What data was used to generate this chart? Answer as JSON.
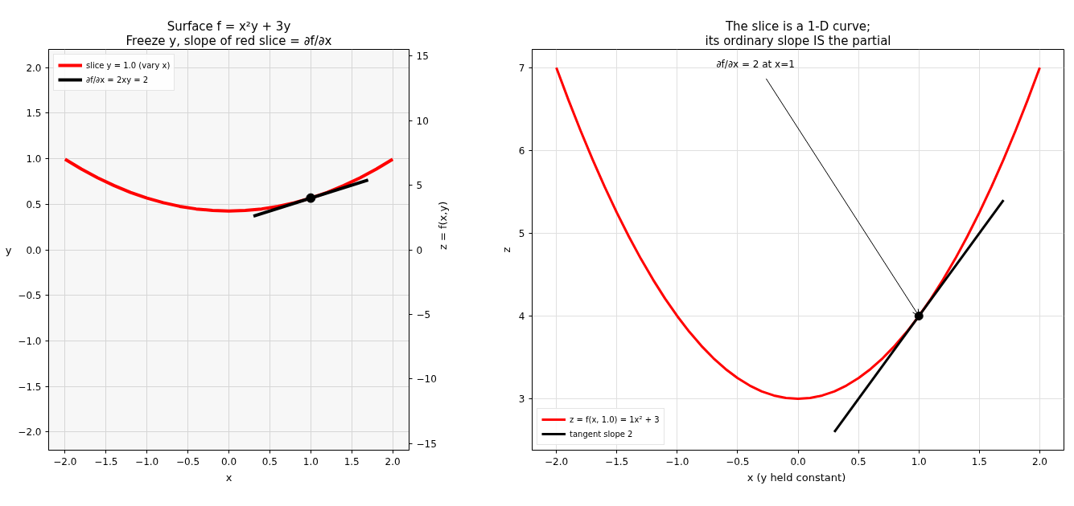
{
  "chart_data": [
    {
      "type": "line",
      "title": "Surface f = x²y + 3y\nFreeze y, slope of red slice = ∂f/∂x",
      "xlabel": "x",
      "ylabel": "y",
      "y2label": "z = f(x,y)",
      "xlim": [
        -2.2,
        2.2
      ],
      "xticks": [
        {
          "value": -2,
          "label": "−2.0"
        },
        {
          "value": -1.5,
          "label": "−1.5"
        },
        {
          "value": -1,
          "label": "−1.0"
        },
        {
          "value": -0.5,
          "label": "−0.5"
        },
        {
          "value": 0,
          "label": "0.0"
        },
        {
          "value": 0.5,
          "label": "0.5"
        },
        {
          "value": 1,
          "label": "1.0"
        },
        {
          "value": 1.5,
          "label": "1.5"
        },
        {
          "value": 2,
          "label": "2.0"
        }
      ],
      "ylim": [
        -2.2,
        2.2
      ],
      "yticks": [
        {
          "value": -2,
          "label": "−2.0"
        },
        {
          "value": -1.5,
          "label": "−1.5"
        },
        {
          "value": -1,
          "label": "−1.0"
        },
        {
          "value": -0.5,
          "label": "−0.5"
        },
        {
          "value": 0,
          "label": "0.0"
        },
        {
          "value": 0.5,
          "label": "0.5"
        },
        {
          "value": 1,
          "label": "1.0"
        },
        {
          "value": 1.5,
          "label": "1.5"
        },
        {
          "value": 2,
          "label": "2.0"
        }
      ],
      "y2lim": [
        -15.5,
        15.5
      ],
      "y2ticks": [
        {
          "value": -15,
          "label": "−15"
        },
        {
          "value": -10,
          "label": "−10"
        },
        {
          "value": -5,
          "label": "−5"
        },
        {
          "value": 0,
          "label": "0"
        },
        {
          "value": 5,
          "label": "5"
        },
        {
          "value": 10,
          "label": "10"
        },
        {
          "value": 15,
          "label": "15"
        }
      ],
      "grid": true,
      "legend": "top left",
      "series": [
        {
          "name": "slice y = 1.0 (vary x)",
          "type": "line",
          "color": "#ff0000",
          "axis": "y2",
          "x": [
            -2,
            -1.8,
            -1.6,
            -1.4,
            -1.2,
            -1,
            -0.8,
            -0.6,
            -0.4,
            -0.2,
            0,
            0.2,
            0.4,
            0.6,
            0.8,
            1,
            1.2,
            1.4,
            1.6,
            1.8,
            2
          ],
          "values": [
            7,
            6.24,
            5.56,
            4.96,
            4.44,
            4,
            3.64,
            3.36,
            3.16,
            3.04,
            3,
            3.04,
            3.16,
            3.36,
            3.64,
            4,
            4.44,
            4.96,
            5.56,
            6.24,
            7
          ]
        },
        {
          "name": "∂f/∂x = 2xy = 2",
          "type": "line",
          "color": "#000000",
          "axis": "y2",
          "x": [
            0.3,
            1.7
          ],
          "values": [
            2.6,
            5.4
          ]
        },
        {
          "type": "scatter",
          "color": "#000000",
          "axis": "y2",
          "x": [
            1
          ],
          "values": [
            4
          ]
        }
      ]
    },
    {
      "type": "line",
      "title": "The slice is a 1-D curve;\nits ordinary slope IS the partial",
      "xlabel": "x  (y held constant)",
      "ylabel": "z",
      "xlim": [
        -2.2,
        2.2
      ],
      "xticks": [
        {
          "value": -2,
          "label": "−2.0"
        },
        {
          "value": -1.5,
          "label": "−1.5"
        },
        {
          "value": -1,
          "label": "−1.0"
        },
        {
          "value": -0.5,
          "label": "−0.5"
        },
        {
          "value": 0,
          "label": "0.0"
        },
        {
          "value": 0.5,
          "label": "0.5"
        },
        {
          "value": 1,
          "label": "1.0"
        },
        {
          "value": 1.5,
          "label": "1.5"
        },
        {
          "value": 2,
          "label": "2.0"
        }
      ],
      "ylim": [
        2.38,
        7.22
      ],
      "yticks": [
        3,
        4,
        5,
        6,
        7
      ],
      "grid": true,
      "legend": "bottom left",
      "annotations": [
        {
          "text": "∂f/∂x = 2 at x=1",
          "x": 1,
          "y": 4
        }
      ],
      "series": [
        {
          "name": "z = f(x, 1.0) = 1x² + 3",
          "type": "line",
          "color": "#ff0000",
          "x": [
            -2,
            -1.9,
            -1.8,
            -1.7,
            -1.6,
            -1.5,
            -1.4,
            -1.3,
            -1.2,
            -1.1,
            -1,
            -0.9,
            -0.8,
            -0.7,
            -0.6,
            -0.5,
            -0.4,
            -0.3,
            -0.2,
            -0.1,
            0,
            0.1,
            0.2,
            0.3,
            0.4,
            0.5,
            0.6,
            0.7,
            0.8,
            0.9,
            1,
            1.1,
            1.2,
            1.3,
            1.4,
            1.5,
            1.6,
            1.7,
            1.8,
            1.9,
            2
          ],
          "values": [
            7,
            6.61,
            6.24,
            5.89,
            5.56,
            5.25,
            4.96,
            4.69,
            4.44,
            4.21,
            4,
            3.81,
            3.64,
            3.49,
            3.36,
            3.25,
            3.16,
            3.09,
            3.04,
            3.01,
            3,
            3.01,
            3.04,
            3.09,
            3.16,
            3.25,
            3.36,
            3.49,
            3.64,
            3.81,
            4,
            4.21,
            4.44,
            4.69,
            4.96,
            5.25,
            5.56,
            5.89,
            6.24,
            6.61,
            7
          ]
        },
        {
          "name": "tangent slope 2",
          "type": "line",
          "color": "#000000",
          "x": [
            0.3,
            1.7
          ],
          "values": [
            2.6,
            5.4
          ]
        },
        {
          "type": "scatter",
          "color": "#000000",
          "x": [
            1
          ],
          "values": [
            4
          ]
        }
      ]
    }
  ]
}
